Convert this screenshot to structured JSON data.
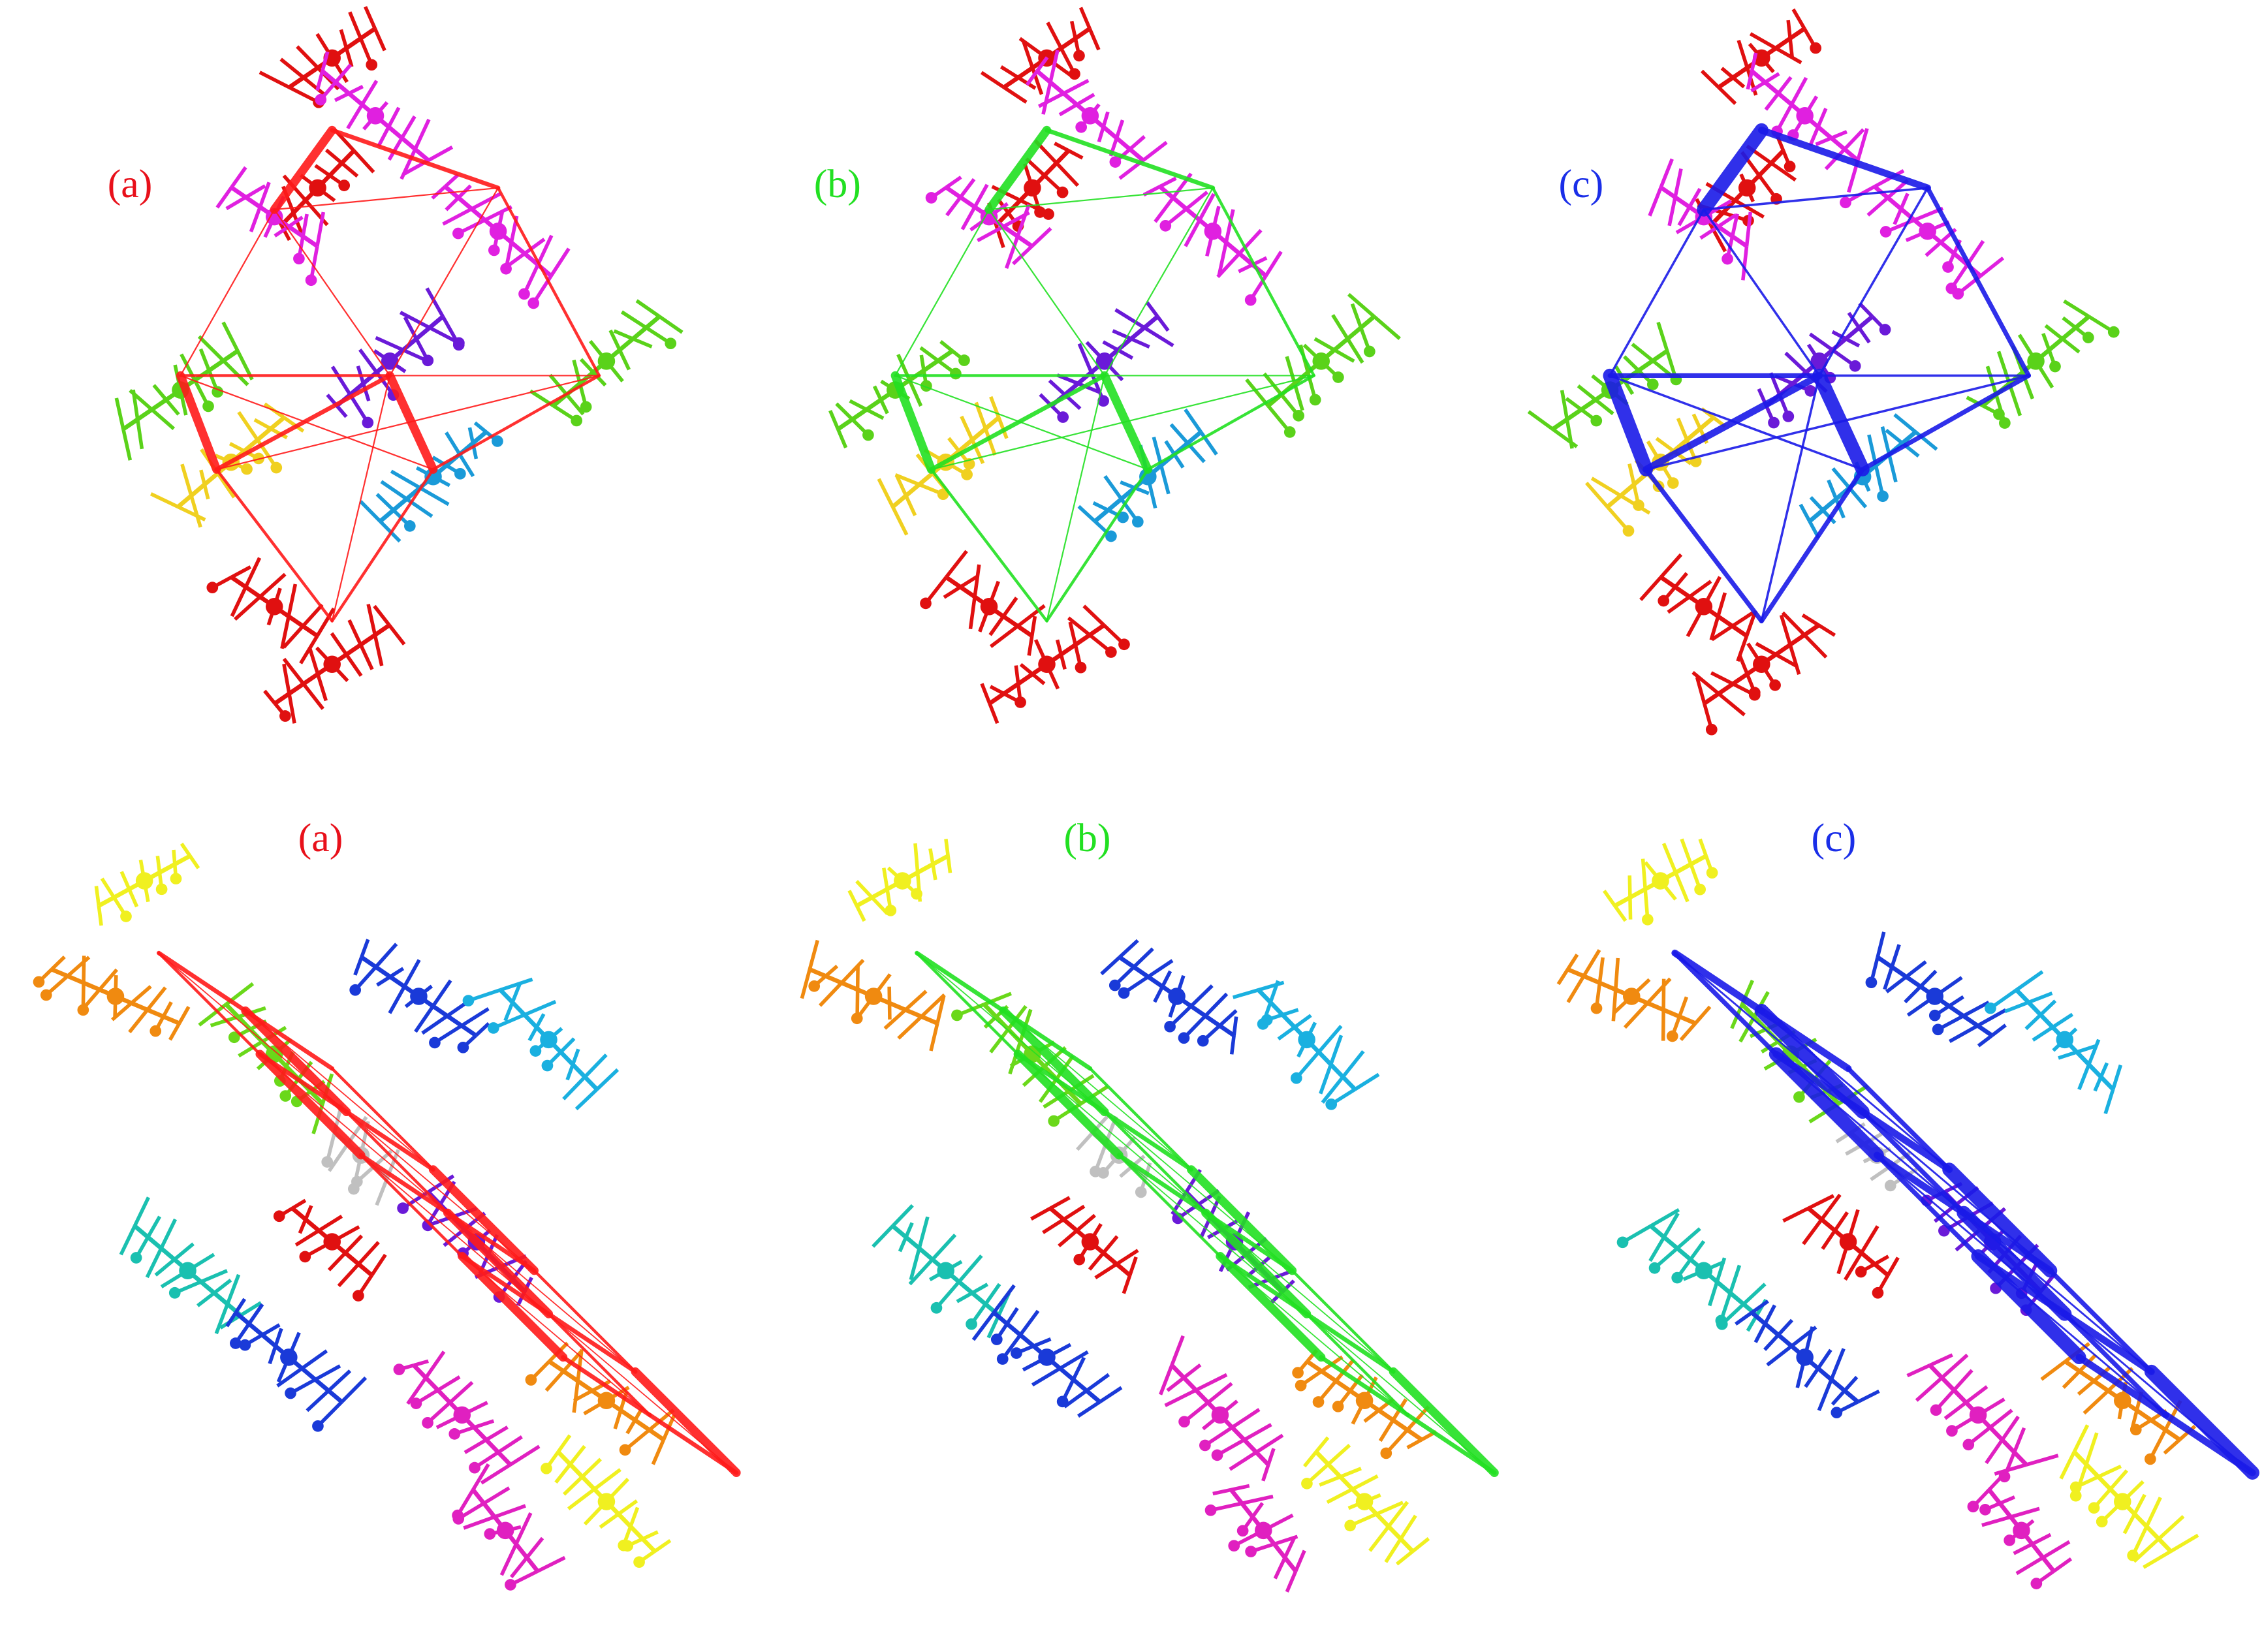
{
  "top_row": {
    "labels": [
      "(a)",
      "(b)",
      "(c)"
    ]
  },
  "bottom_row": {
    "labels": [
      "(a)",
      "(b)",
      "(c)"
    ]
  }
}
